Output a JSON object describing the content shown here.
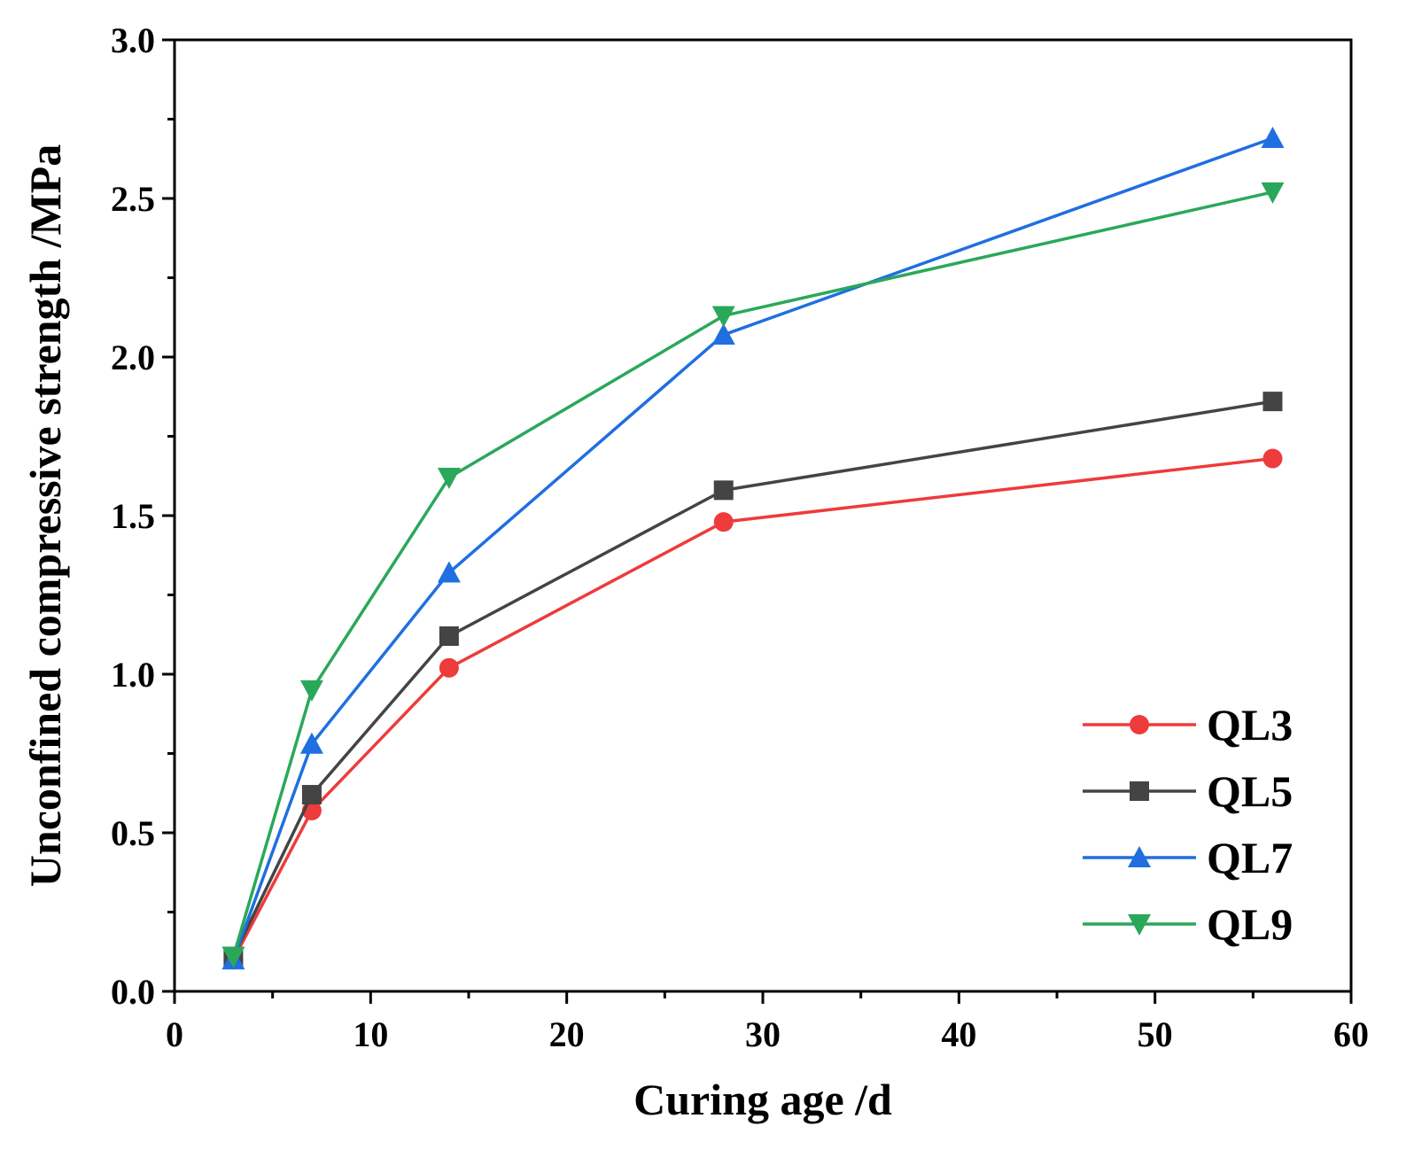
{
  "chart_data": {
    "type": "line",
    "title": "",
    "xlabel": "Curing age /d",
    "ylabel": "Unconfined compressive strength /MPa",
    "xlim": [
      0,
      60
    ],
    "ylim": [
      0.0,
      3.0
    ],
    "xticks": [
      0,
      10,
      20,
      30,
      40,
      50,
      60
    ],
    "xtick_labels": [
      "0",
      "10",
      "20",
      "30",
      "40",
      "50",
      "60"
    ],
    "yticks": [
      0.0,
      0.5,
      1.0,
      1.5,
      2.0,
      2.5,
      3.0
    ],
    "ytick_labels": [
      "0.0",
      "0.5",
      "1.0",
      "1.5",
      "2.0",
      "2.5",
      "3.0"
    ],
    "grid": false,
    "legend_position": "bottom-right",
    "x": [
      3,
      7,
      14,
      28,
      56
    ],
    "series": [
      {
        "name": "QL3",
        "color": "#ee3b3b",
        "marker": "circle",
        "values": [
          0.1,
          0.57,
          1.02,
          1.48,
          1.68
        ]
      },
      {
        "name": "QL5",
        "color": "#444444",
        "marker": "square",
        "values": [
          0.11,
          0.62,
          1.12,
          1.58,
          1.86
        ]
      },
      {
        "name": "QL7",
        "color": "#1f6fe0",
        "marker": "triangle-up",
        "values": [
          0.1,
          0.78,
          1.32,
          2.07,
          2.69
        ]
      },
      {
        "name": "QL9",
        "color": "#2aa85a",
        "marker": "triangle-down",
        "values": [
          0.11,
          0.95,
          1.62,
          2.13,
          2.52
        ]
      }
    ]
  }
}
